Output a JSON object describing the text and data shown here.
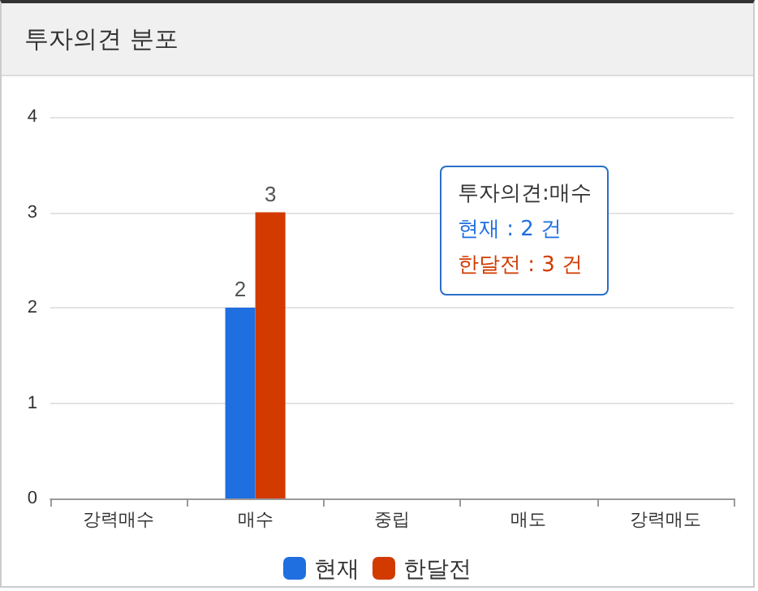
{
  "chart_data": {
    "type": "bar",
    "title": "투자의견 분포",
    "categories": [
      "강력매수",
      "매수",
      "중립",
      "매도",
      "강력매도"
    ],
    "series": [
      {
        "name": "현재",
        "color": "#1f6fe0",
        "values": [
          0,
          2,
          0,
          0,
          0
        ],
        "value_labels": [
          null,
          "2",
          null,
          null,
          null
        ]
      },
      {
        "name": "한달전",
        "color": "#d23a00",
        "values": [
          0,
          3,
          0,
          0,
          0
        ],
        "value_labels": [
          null,
          "3",
          null,
          null,
          null
        ]
      }
    ],
    "ylim": [
      0,
      4
    ],
    "yticks": [
      0,
      1,
      2,
      3,
      4
    ],
    "grid": "y",
    "legend": "bottom",
    "annotations": [
      "투자의견:매수",
      "현재 : 2 건",
      "한달전 : 3 건"
    ]
  }
}
